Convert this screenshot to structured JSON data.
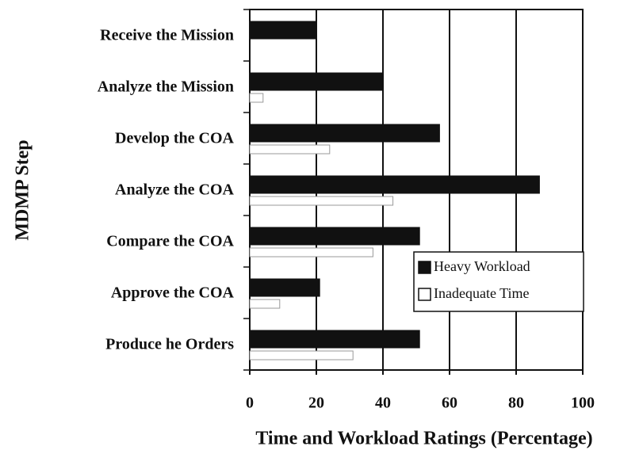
{
  "chart_data": {
    "type": "barh",
    "xlabel": "Time and Workload Ratings (Percentage)",
    "ylabel": "MDMP Step",
    "categories": [
      "Receive the Mission",
      "Analyze the Mission",
      "Develop the COA",
      "Analyze the COA",
      "Compare the COA",
      "Approve the COA",
      "Produce he Orders"
    ],
    "series": [
      {
        "name": "Heavy Workload",
        "color": "#111111",
        "values": [
          20,
          40,
          57,
          87,
          51,
          21,
          51
        ]
      },
      {
        "name": "Inadequate Time",
        "color": "#ffffff",
        "values": [
          0,
          4,
          24,
          43,
          37,
          9,
          31
        ]
      }
    ],
    "xlim": [
      0,
      100
    ],
    "xticks": [
      0,
      20,
      40,
      60,
      80,
      100
    ],
    "grid": true,
    "legend": "lower right"
  }
}
